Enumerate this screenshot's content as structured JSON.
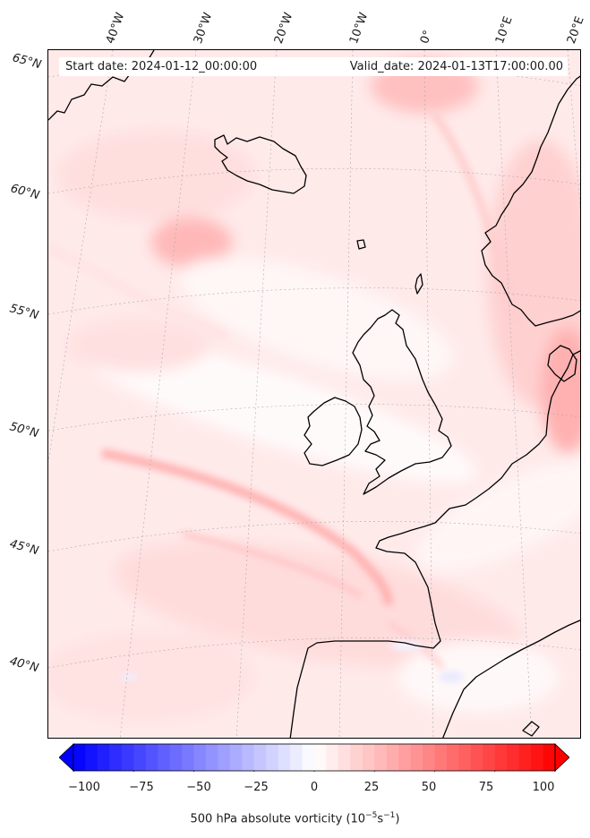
{
  "header": {
    "start_date": "Start date: 2024-01-12_00:00:00",
    "valid_date": "Valid_date: 2024-01-13T17:00:00.00"
  },
  "longitude_labels": [
    "40°W",
    "30°W",
    "20°W",
    "10°W",
    "0°",
    "10°E",
    "20°E"
  ],
  "latitude_labels": [
    "65°N",
    "60°N",
    "55°N",
    "50°N",
    "45°N",
    "40°N"
  ],
  "colorbar": {
    "ticks": [
      "−100",
      "−75",
      "−50",
      "−25",
      "0",
      "25",
      "50",
      "75",
      "100"
    ],
    "range": [
      -100,
      100
    ],
    "colormap": "bwr",
    "extend": "both",
    "title_prefix": "500 hPa absolute vorticity (10",
    "title_exp1": "−5",
    "title_mid": "s",
    "title_exp2": "−1",
    "title_suffix": ")"
  },
  "colors": {
    "negative": "#0000ff",
    "zero": "#ffffff",
    "positive": "#ff0000",
    "coastline": "#000000",
    "field_background": "#fff3f3"
  }
}
